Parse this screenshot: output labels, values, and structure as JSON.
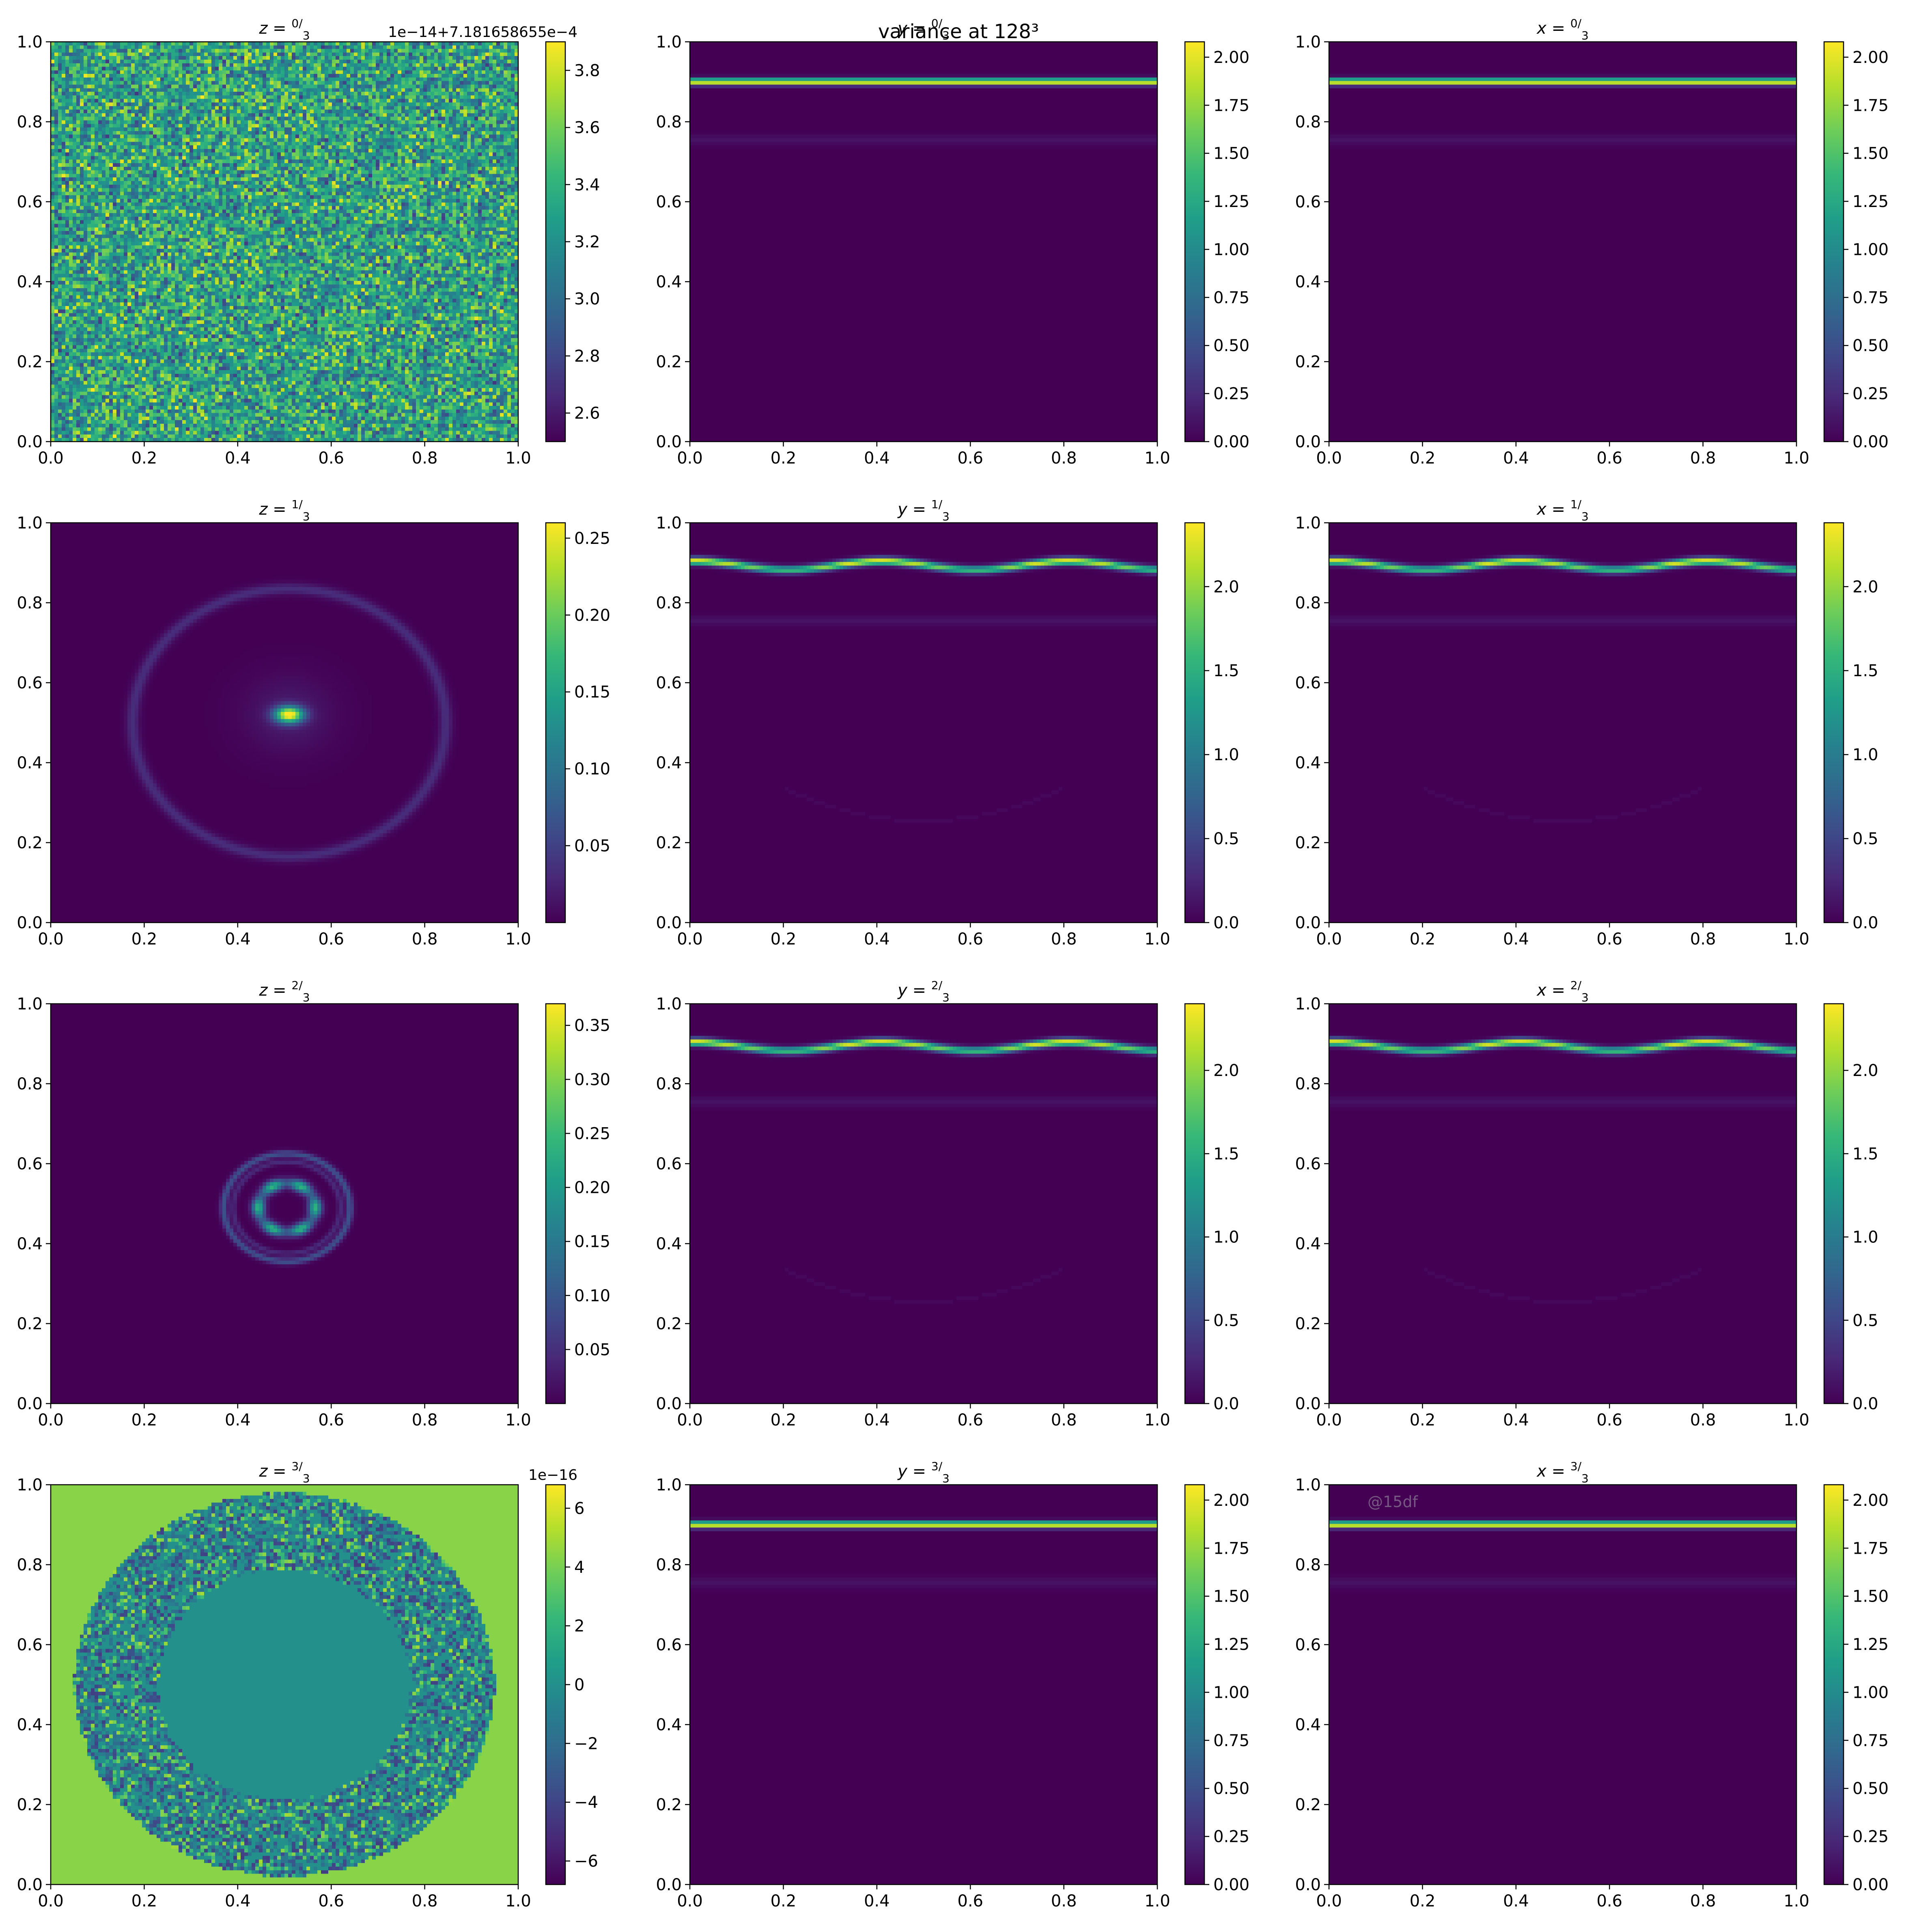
{
  "figure": {
    "suptitle": "variance at 128³",
    "watermark": "@15df",
    "colormap": "viridis"
  },
  "chart_data": [
    {
      "type": "heatmap",
      "panel": "z-0",
      "title": "z = 0/3",
      "title_var": "z",
      "title_num": "0",
      "title_den": "3",
      "field": "noise",
      "xlim": [
        0,
        1
      ],
      "ylim": [
        0,
        1
      ],
      "xticks": [
        "0.0",
        "0.2",
        "0.4",
        "0.6",
        "0.8",
        "1.0"
      ],
      "yticks": [
        "0.0",
        "0.2",
        "0.4",
        "0.6",
        "0.8",
        "1.0"
      ],
      "colorbar": {
        "range": [
          2.5,
          3.9
        ],
        "ticks": [
          "2.6",
          "2.8",
          "3.0",
          "3.2",
          "3.4",
          "3.6",
          "3.8"
        ],
        "offset_text": "1e−14+7.181658655e−4"
      }
    },
    {
      "type": "heatmap",
      "panel": "y-0",
      "title": "y = 0/3",
      "title_var": "y",
      "title_num": "0",
      "title_den": "3",
      "field": "band-flat",
      "xlim": [
        0,
        1
      ],
      "ylim": [
        0,
        1
      ],
      "xticks": [
        "0.0",
        "0.2",
        "0.4",
        "0.6",
        "0.8",
        "1.0"
      ],
      "yticks": [
        "0.0",
        "0.2",
        "0.4",
        "0.6",
        "0.8",
        "1.0"
      ],
      "colorbar": {
        "range": [
          0,
          2.08
        ],
        "ticks": [
          "0.00",
          "0.25",
          "0.50",
          "0.75",
          "1.00",
          "1.25",
          "1.50",
          "1.75",
          "2.00"
        ],
        "offset_text": ""
      }
    },
    {
      "type": "heatmap",
      "panel": "x-0",
      "title": "x = 0/3",
      "title_var": "x",
      "title_num": "0",
      "title_den": "3",
      "field": "band-flat",
      "xlim": [
        0,
        1
      ],
      "ylim": [
        0,
        1
      ],
      "xticks": [
        "0.0",
        "0.2",
        "0.4",
        "0.6",
        "0.8",
        "1.0"
      ],
      "yticks": [
        "0.0",
        "0.2",
        "0.4",
        "0.6",
        "0.8",
        "1.0"
      ],
      "colorbar": {
        "range": [
          0,
          2.08
        ],
        "ticks": [
          "0.00",
          "0.25",
          "0.50",
          "0.75",
          "1.00",
          "1.25",
          "1.50",
          "1.75",
          "2.00"
        ],
        "offset_text": ""
      }
    },
    {
      "type": "heatmap",
      "panel": "z-1",
      "title": "z = 1/3",
      "title_var": "z",
      "title_num": "1",
      "title_den": "3",
      "field": "ring-large",
      "xlim": [
        0,
        1
      ],
      "ylim": [
        0,
        1
      ],
      "xticks": [
        "0.0",
        "0.2",
        "0.4",
        "0.6",
        "0.8",
        "1.0"
      ],
      "yticks": [
        "0.0",
        "0.2",
        "0.4",
        "0.6",
        "0.8",
        "1.0"
      ],
      "colorbar": {
        "range": [
          0,
          0.26
        ],
        "ticks": [
          "0.05",
          "0.10",
          "0.15",
          "0.20",
          "0.25"
        ],
        "offset_text": ""
      }
    },
    {
      "type": "heatmap",
      "panel": "y-1",
      "title": "y = 1/3",
      "title_var": "y",
      "title_num": "1",
      "title_den": "3",
      "field": "band-wavy",
      "xlim": [
        0,
        1
      ],
      "ylim": [
        0,
        1
      ],
      "xticks": [
        "0.0",
        "0.2",
        "0.4",
        "0.6",
        "0.8",
        "1.0"
      ],
      "yticks": [
        "0.0",
        "0.2",
        "0.4",
        "0.6",
        "0.8",
        "1.0"
      ],
      "colorbar": {
        "range": [
          0,
          2.38
        ],
        "ticks": [
          "0.0",
          "0.5",
          "1.0",
          "1.5",
          "2.0"
        ],
        "offset_text": ""
      }
    },
    {
      "type": "heatmap",
      "panel": "x-1",
      "title": "x = 1/3",
      "title_var": "x",
      "title_num": "1",
      "title_den": "3",
      "field": "band-wavy",
      "xlim": [
        0,
        1
      ],
      "ylim": [
        0,
        1
      ],
      "xticks": [
        "0.0",
        "0.2",
        "0.4",
        "0.6",
        "0.8",
        "1.0"
      ],
      "yticks": [
        "0.0",
        "0.2",
        "0.4",
        "0.6",
        "0.8",
        "1.0"
      ],
      "colorbar": {
        "range": [
          0,
          2.38
        ],
        "ticks": [
          "0.0",
          "0.5",
          "1.0",
          "1.5",
          "2.0"
        ],
        "offset_text": ""
      }
    },
    {
      "type": "heatmap",
      "panel": "z-2",
      "title": "z = 2/3",
      "title_var": "z",
      "title_num": "2",
      "title_den": "3",
      "field": "ring-small",
      "xlim": [
        0,
        1
      ],
      "ylim": [
        0,
        1
      ],
      "xticks": [
        "0.0",
        "0.2",
        "0.4",
        "0.6",
        "0.8",
        "1.0"
      ],
      "yticks": [
        "0.0",
        "0.2",
        "0.4",
        "0.6",
        "0.8",
        "1.0"
      ],
      "colorbar": {
        "range": [
          0,
          0.37
        ],
        "ticks": [
          "0.05",
          "0.10",
          "0.15",
          "0.20",
          "0.25",
          "0.30",
          "0.35"
        ],
        "offset_text": ""
      }
    },
    {
      "type": "heatmap",
      "panel": "y-2",
      "title": "y = 2/3",
      "title_var": "y",
      "title_num": "2",
      "title_den": "3",
      "field": "band-wavy",
      "xlim": [
        0,
        1
      ],
      "ylim": [
        0,
        1
      ],
      "xticks": [
        "0.0",
        "0.2",
        "0.4",
        "0.6",
        "0.8",
        "1.0"
      ],
      "yticks": [
        "0.0",
        "0.2",
        "0.4",
        "0.6",
        "0.8",
        "1.0"
      ],
      "colorbar": {
        "range": [
          0,
          2.4
        ],
        "ticks": [
          "0.0",
          "0.5",
          "1.0",
          "1.5",
          "2.0"
        ],
        "offset_text": ""
      }
    },
    {
      "type": "heatmap",
      "panel": "x-2",
      "title": "x = 2/3",
      "title_var": "x",
      "title_num": "2",
      "title_den": "3",
      "field": "band-wavy",
      "xlim": [
        0,
        1
      ],
      "ylim": [
        0,
        1
      ],
      "xticks": [
        "0.0",
        "0.2",
        "0.4",
        "0.6",
        "0.8",
        "1.0"
      ],
      "yticks": [
        "0.0",
        "0.2",
        "0.4",
        "0.6",
        "0.8",
        "1.0"
      ],
      "colorbar": {
        "range": [
          0,
          2.4
        ],
        "ticks": [
          "0.0",
          "0.5",
          "1.0",
          "1.5",
          "2.0"
        ],
        "offset_text": ""
      }
    },
    {
      "type": "heatmap",
      "panel": "z-3",
      "title": "z = 3/3",
      "title_var": "z",
      "title_num": "3",
      "title_den": "3",
      "field": "disc-noise",
      "xlim": [
        0,
        1
      ],
      "ylim": [
        0,
        1
      ],
      "xticks": [
        "0.0",
        "0.2",
        "0.4",
        "0.6",
        "0.8",
        "1.0"
      ],
      "yticks": [
        "0.0",
        "0.2",
        "0.4",
        "0.6",
        "0.8",
        "1.0"
      ],
      "colorbar": {
        "range": [
          -6.8,
          6.8
        ],
        "ticks": [
          "−6",
          "−4",
          "−2",
          "0",
          "2",
          "4",
          "6"
        ],
        "offset_text": "1e−16"
      }
    },
    {
      "type": "heatmap",
      "panel": "y-3",
      "title": "y = 3/3",
      "title_var": "y",
      "title_num": "3",
      "title_den": "3",
      "field": "band-flat",
      "xlim": [
        0,
        1
      ],
      "ylim": [
        0,
        1
      ],
      "xticks": [
        "0.0",
        "0.2",
        "0.4",
        "0.6",
        "0.8",
        "1.0"
      ],
      "yticks": [
        "0.0",
        "0.2",
        "0.4",
        "0.6",
        "0.8",
        "1.0"
      ],
      "colorbar": {
        "range": [
          0,
          2.08
        ],
        "ticks": [
          "0.00",
          "0.25",
          "0.50",
          "0.75",
          "1.00",
          "1.25",
          "1.50",
          "1.75",
          "2.00"
        ],
        "offset_text": ""
      }
    },
    {
      "type": "heatmap",
      "panel": "x-3",
      "title": "x = 3/3",
      "title_var": "x",
      "title_num": "3",
      "title_den": "3",
      "field": "band-flat",
      "xlim": [
        0,
        1
      ],
      "ylim": [
        0,
        1
      ],
      "xticks": [
        "0.0",
        "0.2",
        "0.4",
        "0.6",
        "0.8",
        "1.0"
      ],
      "yticks": [
        "0.0",
        "0.2",
        "0.4",
        "0.6",
        "0.8",
        "1.0"
      ],
      "colorbar": {
        "range": [
          0,
          2.08
        ],
        "ticks": [
          "0.00",
          "0.25",
          "0.50",
          "0.75",
          "1.00",
          "1.25",
          "1.50",
          "1.75",
          "2.00"
        ],
        "offset_text": ""
      }
    }
  ]
}
